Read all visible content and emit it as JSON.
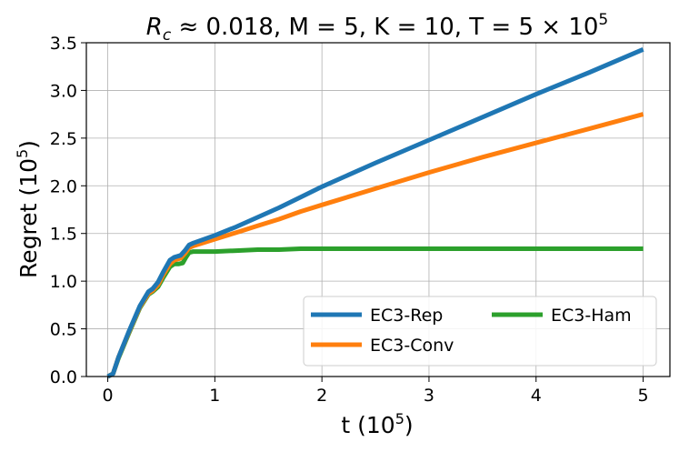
{
  "chart_data": {
    "type": "line",
    "title": {
      "prefix": "R",
      "prefix_sub": "c",
      "body": " ≈ 0.018, M = 5, K = 10, T = 5 × 10",
      "body_sup": "5"
    },
    "xlabel": {
      "text": "t (10",
      "sup": "5",
      "suffix": ")"
    },
    "ylabel": {
      "text": "Regret (10",
      "sup": "5",
      "suffix": ")"
    },
    "xlim": [
      -0.2,
      5.25
    ],
    "ylim": [
      0.0,
      3.5
    ],
    "xticks": [
      0,
      1,
      2,
      3,
      4,
      5
    ],
    "xtick_labels": [
      "0",
      "1",
      "2",
      "3",
      "4",
      "5"
    ],
    "yticks": [
      0.0,
      0.5,
      1.0,
      1.5,
      2.0,
      2.5,
      3.0,
      3.5
    ],
    "ytick_labels": [
      "0.0",
      "0.5",
      "1.0",
      "1.5",
      "2.0",
      "2.5",
      "3.0",
      "3.5"
    ],
    "grid": true,
    "legend_position": "lower-right",
    "legend_columns": 2,
    "series": [
      {
        "name": "EC3-Rep",
        "color": "#1f77b4",
        "x": [
          0,
          0.05,
          0.1,
          0.2,
          0.3,
          0.38,
          0.42,
          0.47,
          0.52,
          0.58,
          0.62,
          0.68,
          0.72,
          0.76,
          0.8,
          1.0,
          1.2,
          1.4,
          1.6,
          1.8,
          2.0,
          2.5,
          3.0,
          3.5,
          4.0,
          4.5,
          5.0
        ],
        "y": [
          0.0,
          0.03,
          0.2,
          0.48,
          0.74,
          0.89,
          0.92,
          0.99,
          1.1,
          1.22,
          1.25,
          1.27,
          1.32,
          1.38,
          1.4,
          1.48,
          1.57,
          1.67,
          1.77,
          1.88,
          1.99,
          2.24,
          2.48,
          2.72,
          2.96,
          3.19,
          3.43
        ]
      },
      {
        "name": "EC3-Conv",
        "color": "#ff7f0e",
        "x": [
          0,
          0.05,
          0.1,
          0.2,
          0.3,
          0.38,
          0.42,
          0.47,
          0.52,
          0.58,
          0.62,
          0.68,
          0.72,
          0.76,
          0.8,
          1.0,
          1.2,
          1.4,
          1.6,
          1.8,
          2.0,
          2.5,
          3.0,
          3.5,
          4.0,
          4.5,
          5.0
        ],
        "y": [
          0.0,
          0.03,
          0.2,
          0.47,
          0.73,
          0.87,
          0.9,
          0.96,
          1.07,
          1.18,
          1.22,
          1.24,
          1.29,
          1.35,
          1.37,
          1.44,
          1.51,
          1.58,
          1.65,
          1.73,
          1.8,
          1.97,
          2.14,
          2.3,
          2.45,
          2.6,
          2.75
        ]
      },
      {
        "name": "EC3-Ham",
        "color": "#2ca02c",
        "x": [
          0,
          0.05,
          0.1,
          0.2,
          0.3,
          0.38,
          0.42,
          0.47,
          0.52,
          0.58,
          0.62,
          0.66,
          0.7,
          0.73,
          0.76,
          0.8,
          1.0,
          1.2,
          1.4,
          1.6,
          1.8,
          2.0,
          2.5,
          3.0,
          3.5,
          4.0,
          4.5,
          5.0
        ],
        "y": [
          0.0,
          0.03,
          0.19,
          0.46,
          0.72,
          0.86,
          0.89,
          0.94,
          1.04,
          1.15,
          1.18,
          1.18,
          1.19,
          1.25,
          1.3,
          1.31,
          1.31,
          1.32,
          1.33,
          1.33,
          1.34,
          1.34,
          1.34,
          1.34,
          1.34,
          1.34,
          1.34,
          1.34
        ]
      }
    ]
  }
}
